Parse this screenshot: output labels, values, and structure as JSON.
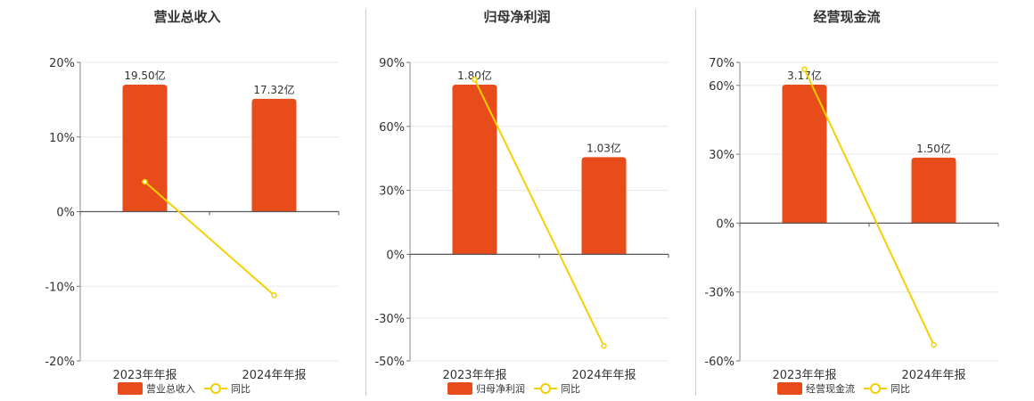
{
  "chart_data": [
    {
      "type": "bar",
      "title": "营业总收入",
      "categories": [
        "2023年年报",
        "2024年年报"
      ],
      "series": [
        {
          "name": "营业总收入",
          "type": "bar",
          "axis": "value-axis-unlabeled",
          "values": [
            19.5,
            17.32
          ],
          "labels": [
            "19.50亿",
            "17.32亿"
          ],
          "color": "#e84c1b"
        },
        {
          "name": "同比",
          "type": "line",
          "axis": "percent",
          "values": [
            4.0,
            -11.2
          ],
          "color": "#f5d000"
        }
      ],
      "y_ticks": [
        "20%",
        "10%",
        "0%",
        "-10%",
        "-20%"
      ],
      "ylim": [
        -20,
        20
      ],
      "grid": true,
      "legend": "bottom-center"
    },
    {
      "type": "bar",
      "title": "归母净利润",
      "categories": [
        "2023年年报",
        "2024年年报"
      ],
      "series": [
        {
          "name": "归母净利润",
          "type": "bar",
          "axis": "value-axis-unlabeled",
          "values": [
            1.8,
            1.03
          ],
          "labels": [
            "1.80亿",
            "1.03亿"
          ],
          "color": "#e84c1b"
        },
        {
          "name": "同比",
          "type": "line",
          "axis": "percent",
          "values": [
            82.0,
            -43.0
          ],
          "color": "#f5d000"
        }
      ],
      "y_ticks": [
        "90%",
        "60%",
        "30%",
        "0%",
        "-30%",
        "-50%"
      ],
      "ylim": [
        -50,
        90
      ],
      "grid": true,
      "legend": "bottom-center"
    },
    {
      "type": "bar",
      "title": "经营现金流",
      "categories": [
        "2023年年报",
        "2024年年报"
      ],
      "series": [
        {
          "name": "经营现金流",
          "type": "bar",
          "axis": "value-axis-unlabeled",
          "values": [
            3.17,
            1.5
          ],
          "labels": [
            "3.17亿",
            "1.50亿"
          ],
          "color": "#e84c1b"
        },
        {
          "name": "同比",
          "type": "line",
          "axis": "percent",
          "values": [
            67.0,
            -53.0
          ],
          "color": "#f5d000"
        }
      ],
      "y_ticks": [
        "70%",
        "60%",
        "30%",
        "0%",
        "-30%",
        "-60%"
      ],
      "ylim": [
        -60,
        70
      ],
      "grid": true,
      "legend": "bottom-center"
    }
  ]
}
